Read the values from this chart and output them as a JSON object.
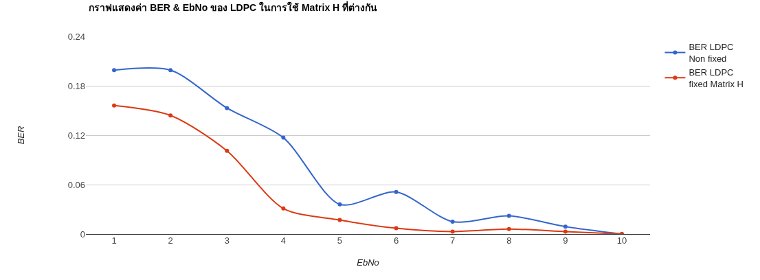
{
  "chart_data": {
    "type": "line",
    "title": "กราฟแสดงค่า BER & EbNo ของ LDPC ในการใช้ Matrix H ที่ต่างกัน",
    "xlabel": "EbNo",
    "ylabel": "BER",
    "categories": [
      "1",
      "2",
      "3",
      "4",
      "5",
      "6",
      "7",
      "8",
      "9",
      "10"
    ],
    "series": [
      {
        "name": "BER LDPC\nNon fixed",
        "color": "#3366cc",
        "values": [
          0.199,
          0.199,
          0.153,
          0.117,
          0.036,
          0.051,
          0.015,
          0.022,
          0.009,
          0
        ]
      },
      {
        "name": "BER LDPC\nfixed Matrix H",
        "color": "#dc3912",
        "values": [
          0.156,
          0.144,
          0.101,
          0.031,
          0.017,
          0.007,
          0.003,
          0.006,
          0.003,
          0
        ]
      }
    ],
    "ylim": [
      0,
      0.24
    ],
    "yticks": [
      0,
      0.06,
      0.12,
      0.18,
      0.24
    ],
    "grid": "y",
    "legend": "top right",
    "marker": "circle",
    "line_style": "solid"
  }
}
